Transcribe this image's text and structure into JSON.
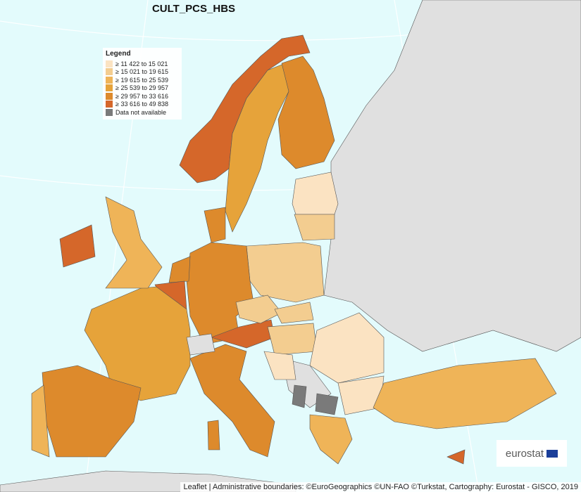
{
  "title": "CULT_PCS_HBS",
  "legend": {
    "title": "Legend",
    "items": [
      {
        "label": "≥ 11 422 to 15 021",
        "color": "#fbe3c2"
      },
      {
        "label": "≥ 15 021 to 19 615",
        "color": "#f3cd90"
      },
      {
        "label": "≥ 19 615 to 25 539",
        "color": "#efb458"
      },
      {
        "label": "≥ 25 539 to 29 957",
        "color": "#e6a33a"
      },
      {
        "label": "≥ 29 957 to 33 616",
        "color": "#dd8a2c"
      },
      {
        "label": "≥ 33 616 to 49 838",
        "color": "#d5672a"
      },
      {
        "label": "Data not available",
        "color": "#7a7a7a"
      }
    ]
  },
  "logo": "eurostat",
  "attribution": "Leaflet | Administrative boundaries: ©EuroGeographics ©UN-FAO ©Turkstat, Cartography: Eurostat - GISCO, 2019"
}
